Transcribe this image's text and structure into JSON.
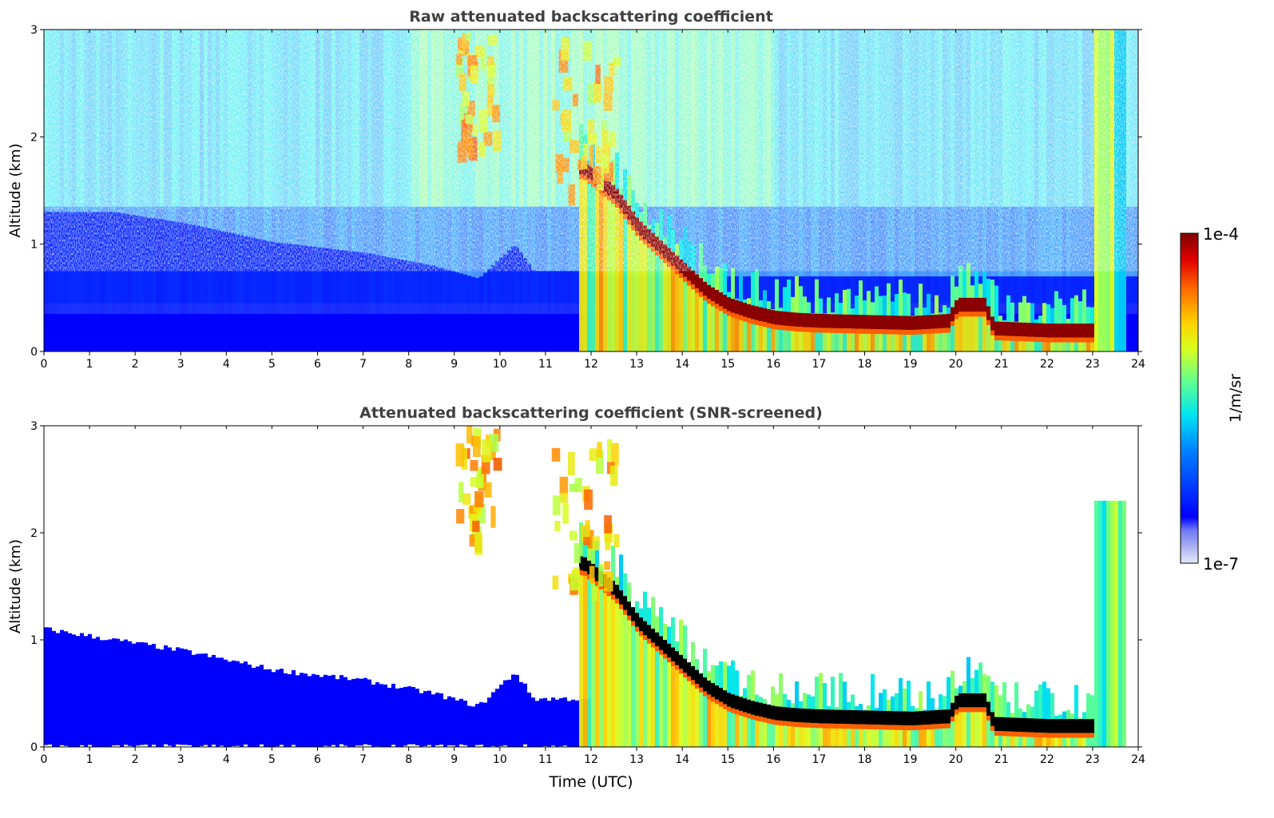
{
  "chart_data": [
    {
      "type": "heatmap",
      "title": "Raw attenuated backscattering coefficient",
      "xlabel": "",
      "ylabel": "Altitude (km)",
      "xlim": [
        0,
        24
      ],
      "ylim": [
        0,
        3
      ],
      "x_ticks": [
        "0",
        "1",
        "2",
        "3",
        "4",
        "5",
        "6",
        "7",
        "8",
        "9",
        "10",
        "11",
        "12",
        "13",
        "14",
        "15",
        "16",
        "17",
        "18",
        "19",
        "20",
        "21",
        "22",
        "23",
        "24"
      ],
      "y_ticks": [
        "0",
        "1",
        "2",
        "3"
      ],
      "screened": false
    },
    {
      "type": "heatmap",
      "title": "Attenuated backscattering coefficient (SNR-screened)",
      "xlabel": "Time (UTC)",
      "ylabel": "Altitude (km)",
      "xlim": [
        0,
        24
      ],
      "ylim": [
        0,
        3
      ],
      "x_ticks": [
        "0",
        "1",
        "2",
        "3",
        "4",
        "5",
        "6",
        "7",
        "8",
        "9",
        "10",
        "11",
        "12",
        "13",
        "14",
        "15",
        "16",
        "17",
        "18",
        "19",
        "20",
        "21",
        "22",
        "23",
        "24"
      ],
      "y_ticks": [
        "0",
        "1",
        "2",
        "3"
      ],
      "screened": true
    }
  ],
  "colorbar": {
    "label": "1/m/sr",
    "max_label": "1e-4",
    "min_label": "1e-7",
    "scale": "log",
    "range": [
      1e-07,
      0.0001
    ],
    "colormap": "jet"
  },
  "features": {
    "cloud_base_km": [
      [
        11.8,
        1.7
      ],
      [
        12.5,
        1.45
      ],
      [
        13.0,
        1.15
      ],
      [
        13.5,
        0.95
      ],
      [
        14.0,
        0.75
      ],
      [
        14.5,
        0.55
      ],
      [
        15.0,
        0.42
      ],
      [
        15.5,
        0.35
      ],
      [
        16.0,
        0.3
      ],
      [
        16.5,
        0.28
      ],
      [
        17.0,
        0.27
      ],
      [
        18.0,
        0.26
      ],
      [
        19.0,
        0.25
      ],
      [
        19.8,
        0.27
      ],
      [
        20.0,
        0.42
      ],
      [
        20.6,
        0.42
      ],
      [
        20.8,
        0.2
      ],
      [
        22.0,
        0.18
      ],
      [
        23.0,
        0.18
      ]
    ],
    "high_cloud_1": {
      "x_range": [
        9.0,
        9.9
      ],
      "y_range": [
        1.95,
        3.0
      ]
    },
    "high_cloud_2": {
      "x_range": [
        11.1,
        12.5
      ],
      "y_range": [
        1.5,
        3.0
      ]
    },
    "boundary_layer_top_km": [
      [
        0,
        1.1
      ],
      [
        3,
        0.9
      ],
      [
        5,
        0.72
      ],
      [
        7,
        0.62
      ],
      [
        8.5,
        0.5
      ],
      [
        9.5,
        0.38
      ],
      [
        10.3,
        0.7
      ],
      [
        10.7,
        0.45
      ],
      [
        12,
        0.45
      ]
    ]
  }
}
